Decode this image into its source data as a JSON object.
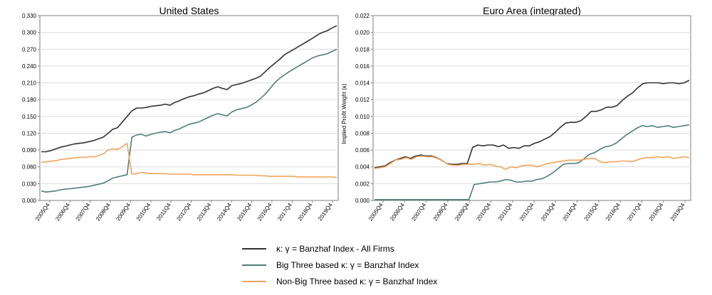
{
  "chart_data": [
    {
      "type": "line",
      "title": "United States",
      "ylabel": "",
      "ylim": [
        0,
        0.33
      ],
      "yticks": [
        "0.000",
        "0.030",
        "0.060",
        "0.090",
        "0.120",
        "0.150",
        "0.180",
        "0.210",
        "0.240",
        "0.270",
        "0.300",
        "0.330"
      ],
      "xticks": [
        "2005Q4",
        "2006Q4",
        "2007Q4",
        "2008Q4",
        "2009Q4",
        "2010Q4",
        "2011Q4",
        "2012Q4",
        "2013Q4",
        "2014Q4",
        "2015Q4",
        "2016Q4",
        "2017Q4",
        "2018Q4",
        "2019Q4"
      ],
      "grid": true,
      "series": [
        {
          "name": "κ: γ = Banzhaf Index - All Firms",
          "color": "#333333",
          "values": [
            0.087,
            0.087,
            0.089,
            0.092,
            0.095,
            0.097,
            0.099,
            0.101,
            0.102,
            0.103,
            0.105,
            0.107,
            0.11,
            0.113,
            0.12,
            0.127,
            0.13,
            0.14,
            0.15,
            0.16,
            0.165,
            0.165,
            0.166,
            0.168,
            0.169,
            0.17,
            0.172,
            0.17,
            0.175,
            0.178,
            0.182,
            0.185,
            0.187,
            0.19,
            0.192,
            0.196,
            0.2,
            0.203,
            0.2,
            0.198,
            0.205,
            0.207,
            0.209,
            0.212,
            0.215,
            0.218,
            0.222,
            0.23,
            0.238,
            0.245,
            0.252,
            0.26,
            0.265,
            0.27,
            0.275,
            0.28,
            0.285,
            0.29,
            0.296,
            0.3,
            0.303,
            0.308,
            0.312
          ]
        },
        {
          "name": "Big Three based κ: γ = Banzhaf Index",
          "color": "#4e7f7a",
          "values": [
            0.017,
            0.015,
            0.016,
            0.017,
            0.019,
            0.02,
            0.021,
            0.022,
            0.023,
            0.024,
            0.025,
            0.027,
            0.029,
            0.031,
            0.035,
            0.04,
            0.042,
            0.044,
            0.046,
            0.113,
            0.117,
            0.118,
            0.115,
            0.118,
            0.12,
            0.122,
            0.123,
            0.121,
            0.125,
            0.128,
            0.132,
            0.136,
            0.138,
            0.14,
            0.144,
            0.148,
            0.152,
            0.155,
            0.153,
            0.151,
            0.158,
            0.162,
            0.164,
            0.166,
            0.17,
            0.175,
            0.182,
            0.19,
            0.2,
            0.21,
            0.218,
            0.224,
            0.23,
            0.235,
            0.24,
            0.245,
            0.25,
            0.255,
            0.258,
            0.26,
            0.262,
            0.266,
            0.27
          ]
        },
        {
          "name": "Non-Big Three based κ: γ = Banzhaf Index",
          "color": "#f3a35a",
          "values": [
            0.068,
            0.069,
            0.07,
            0.071,
            0.073,
            0.074,
            0.075,
            0.076,
            0.077,
            0.077,
            0.078,
            0.078,
            0.08,
            0.083,
            0.09,
            0.092,
            0.091,
            0.096,
            0.102,
            0.047,
            0.048,
            0.05,
            0.049,
            0.048,
            0.048,
            0.048,
            0.048,
            0.047,
            0.047,
            0.047,
            0.047,
            0.047,
            0.046,
            0.046,
            0.046,
            0.046,
            0.046,
            0.046,
            0.046,
            0.046,
            0.046,
            0.045,
            0.045,
            0.045,
            0.045,
            0.045,
            0.044,
            0.044,
            0.043,
            0.043,
            0.043,
            0.043,
            0.043,
            0.043,
            0.042,
            0.042,
            0.042,
            0.042,
            0.042,
            0.042,
            0.042,
            0.042,
            0.041
          ]
        }
      ]
    },
    {
      "type": "line",
      "title": "Euro Area (integrated)",
      "ylabel": "Implied Profit Weight (κ)",
      "ylim": [
        0,
        0.022
      ],
      "yticks": [
        "0.000",
        "0.002",
        "0.004",
        "0.006",
        "0.008",
        "0.010",
        "0.012",
        "0.014",
        "0.016",
        "0.018",
        "0.020",
        "0.022"
      ],
      "xticks": [
        "2005Q4",
        "2006Q4",
        "2007Q4",
        "2008Q4",
        "2009Q4",
        "2010Q4",
        "2011Q4",
        "2012Q4",
        "2013Q4",
        "2014Q4",
        "2015Q4",
        "2016Q4",
        "2017Q4",
        "2018Q4",
        "2019Q4"
      ],
      "grid": true,
      "series": [
        {
          "name": "κ: γ = Banzhaf Index - All Firms",
          "color": "#333333",
          "values": [
            0.0039,
            0.004,
            0.0041,
            0.0045,
            0.0048,
            0.005,
            0.0052,
            0.005,
            0.0053,
            0.0054,
            0.0053,
            0.0053,
            0.0051,
            0.0048,
            0.0044,
            0.0043,
            0.0043,
            0.0044,
            0.0044,
            0.0063,
            0.0066,
            0.0065,
            0.0066,
            0.0066,
            0.0064,
            0.0066,
            0.0062,
            0.0063,
            0.0062,
            0.0065,
            0.0065,
            0.0068,
            0.007,
            0.0073,
            0.0076,
            0.0081,
            0.0087,
            0.0092,
            0.0093,
            0.0093,
            0.0095,
            0.01,
            0.0106,
            0.0106,
            0.0108,
            0.0111,
            0.0111,
            0.0113,
            0.0119,
            0.0124,
            0.0128,
            0.0134,
            0.0139,
            0.014,
            0.014,
            0.014,
            0.0139,
            0.014,
            0.014,
            0.0139,
            0.014,
            0.0143
          ]
        },
        {
          "name": "Big Three based κ: γ = Banzhaf Index",
          "color": "#4e7f7a",
          "values": [
            0.0001,
            0.0001,
            0.0001,
            0.0001,
            0.0001,
            0.0001,
            0.0001,
            0.0001,
            0.0001,
            0.0001,
            0.0001,
            0.0001,
            0.0001,
            0.0001,
            0.0001,
            0.0001,
            0.0001,
            0.0001,
            0.0001,
            0.0019,
            0.002,
            0.0021,
            0.0022,
            0.0022,
            0.0023,
            0.0025,
            0.0024,
            0.0022,
            0.0022,
            0.0023,
            0.0023,
            0.0025,
            0.0026,
            0.0029,
            0.0033,
            0.0038,
            0.0043,
            0.0044,
            0.0044,
            0.0045,
            0.005,
            0.0055,
            0.0057,
            0.0061,
            0.0064,
            0.0065,
            0.0068,
            0.0073,
            0.0078,
            0.0082,
            0.0086,
            0.0089,
            0.0088,
            0.0089,
            0.0087,
            0.0088,
            0.0089,
            0.0087,
            0.0088,
            0.0089,
            0.009
          ]
        },
        {
          "name": "Non-Big Three based κ: γ = Banzhaf Index",
          "color": "#f3a35a",
          "values": [
            0.0038,
            0.0039,
            0.004,
            0.0044,
            0.0048,
            0.0049,
            0.0051,
            0.0049,
            0.0052,
            0.0053,
            0.0052,
            0.0052,
            0.005,
            0.0047,
            0.0043,
            0.0042,
            0.0042,
            0.0043,
            0.0043,
            0.0043,
            0.0044,
            0.0042,
            0.0043,
            0.0041,
            0.004,
            0.0037,
            0.004,
            0.0039,
            0.0041,
            0.0042,
            0.0042,
            0.004,
            0.0042,
            0.0044,
            0.0045,
            0.0046,
            0.0047,
            0.0048,
            0.0048,
            0.0048,
            0.0049,
            0.005,
            0.005,
            0.0046,
            0.0045,
            0.0046,
            0.0046,
            0.0047,
            0.0047,
            0.0046,
            0.0048,
            0.005,
            0.0051,
            0.0051,
            0.0052,
            0.0051,
            0.0052,
            0.005,
            0.0051,
            0.0052,
            0.0051
          ]
        }
      ]
    }
  ],
  "legend": [
    {
      "label": "κ: γ = Banzhaf Index - All Firms",
      "color": "#333333"
    },
    {
      "label": "Big Three based κ: γ = Banzhaf Index",
      "color": "#4e7f7a"
    },
    {
      "label": "Non-Big Three based κ: γ = Banzhaf Index",
      "color": "#f3a35a"
    }
  ]
}
